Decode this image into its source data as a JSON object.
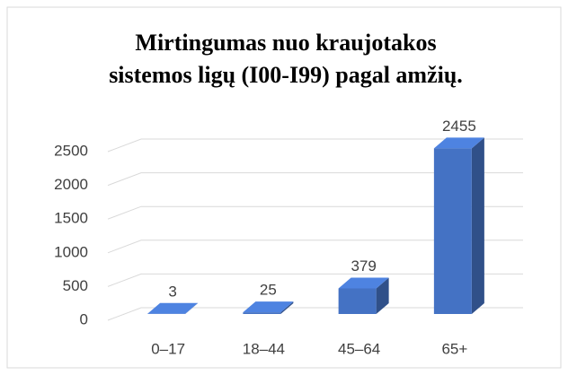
{
  "chart_data": {
    "type": "bar3d",
    "title": [
      "Mirtingumas nuo kraujotakos",
      "sistemos ligų (I00-I99) pagal amžių."
    ],
    "categories": [
      "0–17",
      "18–44",
      "45–64",
      "65+"
    ],
    "values": [
      3,
      25,
      379,
      2455
    ],
    "color": "#4472c4",
    "ylim": [
      0,
      2500
    ],
    "yticks": [
      0,
      500,
      1000,
      1500,
      2000,
      2500
    ],
    "grid": true
  }
}
